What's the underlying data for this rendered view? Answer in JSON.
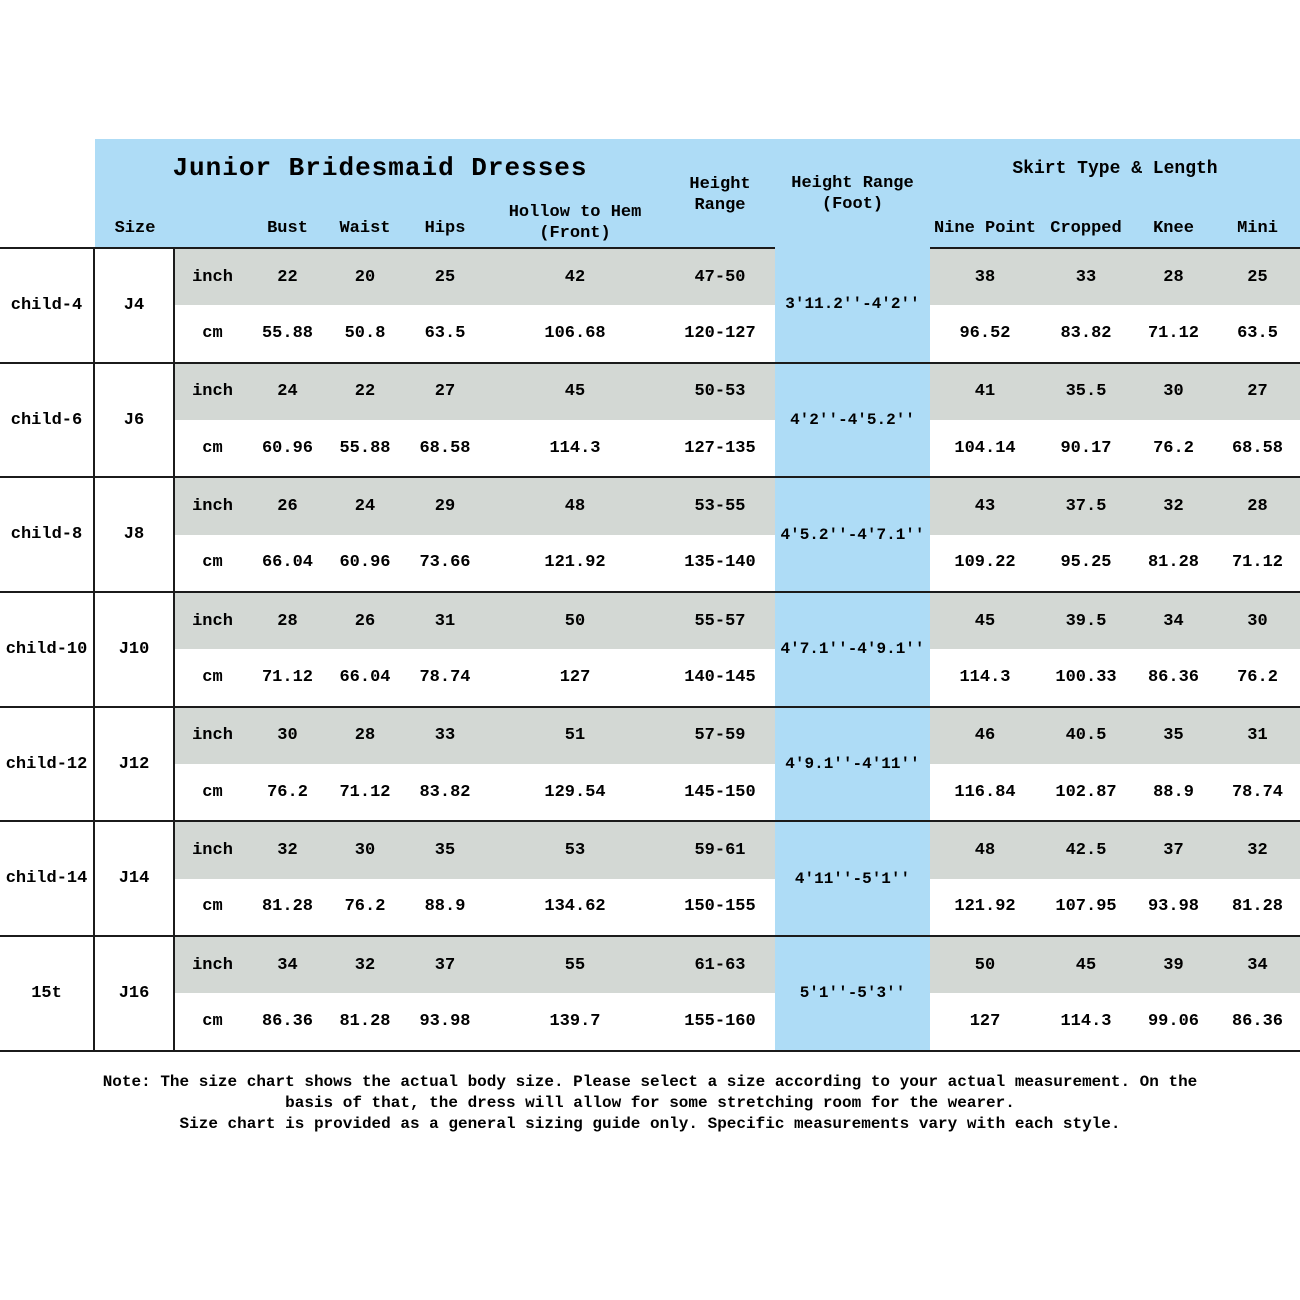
{
  "header": {
    "title": "Junior Bridesmaid Dresses",
    "size": "Size",
    "bust": "Bust",
    "waist": "Waist",
    "hips": "Hips",
    "hollow_l1": "Hollow to Hem",
    "hollow_l2": "(Front)",
    "height_range_l1": "Height",
    "height_range_l2": "Range",
    "height_foot_l1": "Height Range",
    "height_foot_l2": "(Foot)",
    "skirt_group": "Skirt Type & Length",
    "nine_point": "Nine Point",
    "cropped": "Cropped",
    "knee": "Knee",
    "mini": "Mini"
  },
  "units": {
    "inch": "inch",
    "cm": "cm"
  },
  "colors": {
    "header_blue": "#aedcf6",
    "inch_row_grey": "#d3d8d4",
    "line_black": "#1b1b1b"
  },
  "rows": [
    {
      "label": "child-4",
      "size": "J4",
      "foot": "3'11.2''-4'2''",
      "inch": {
        "bust": "22",
        "waist": "20",
        "hips": "25",
        "hollow": "42",
        "height": "47-50",
        "nine_point": "38",
        "cropped": "33",
        "knee": "28",
        "mini": "25"
      },
      "cm": {
        "bust": "55.88",
        "waist": "50.8",
        "hips": "63.5",
        "hollow": "106.68",
        "height": "120-127",
        "nine_point": "96.52",
        "cropped": "83.82",
        "knee": "71.12",
        "mini": "63.5"
      }
    },
    {
      "label": "child-6",
      "size": "J6",
      "foot": "4'2''-4'5.2''",
      "inch": {
        "bust": "24",
        "waist": "22",
        "hips": "27",
        "hollow": "45",
        "height": "50-53",
        "nine_point": "41",
        "cropped": "35.5",
        "knee": "30",
        "mini": "27"
      },
      "cm": {
        "bust": "60.96",
        "waist": "55.88",
        "hips": "68.58",
        "hollow": "114.3",
        "height": "127-135",
        "nine_point": "104.14",
        "cropped": "90.17",
        "knee": "76.2",
        "mini": "68.58"
      }
    },
    {
      "label": "child-8",
      "size": "J8",
      "foot": "4'5.2''-4'7.1''",
      "inch": {
        "bust": "26",
        "waist": "24",
        "hips": "29",
        "hollow": "48",
        "height": "53-55",
        "nine_point": "43",
        "cropped": "37.5",
        "knee": "32",
        "mini": "28"
      },
      "cm": {
        "bust": "66.04",
        "waist": "60.96",
        "hips": "73.66",
        "hollow": "121.92",
        "height": "135-140",
        "nine_point": "109.22",
        "cropped": "95.25",
        "knee": "81.28",
        "mini": "71.12"
      }
    },
    {
      "label": "child-10",
      "size": "J10",
      "foot": "4'7.1''-4'9.1''",
      "inch": {
        "bust": "28",
        "waist": "26",
        "hips": "31",
        "hollow": "50",
        "height": "55-57",
        "nine_point": "45",
        "cropped": "39.5",
        "knee": "34",
        "mini": "30"
      },
      "cm": {
        "bust": "71.12",
        "waist": "66.04",
        "hips": "78.74",
        "hollow": "127",
        "height": "140-145",
        "nine_point": "114.3",
        "cropped": "100.33",
        "knee": "86.36",
        "mini": "76.2"
      }
    },
    {
      "label": "child-12",
      "size": "J12",
      "foot": "4'9.1''-4'11''",
      "inch": {
        "bust": "30",
        "waist": "28",
        "hips": "33",
        "hollow": "51",
        "height": "57-59",
        "nine_point": "46",
        "cropped": "40.5",
        "knee": "35",
        "mini": "31"
      },
      "cm": {
        "bust": "76.2",
        "waist": "71.12",
        "hips": "83.82",
        "hollow": "129.54",
        "height": "145-150",
        "nine_point": "116.84",
        "cropped": "102.87",
        "knee": "88.9",
        "mini": "78.74"
      }
    },
    {
      "label": "child-14",
      "size": "J14",
      "foot": "4'11''-5'1''",
      "inch": {
        "bust": "32",
        "waist": "30",
        "hips": "35",
        "hollow": "53",
        "height": "59-61",
        "nine_point": "48",
        "cropped": "42.5",
        "knee": "37",
        "mini": "32"
      },
      "cm": {
        "bust": "81.28",
        "waist": "76.2",
        "hips": "88.9",
        "hollow": "134.62",
        "height": "150-155",
        "nine_point": "121.92",
        "cropped": "107.95",
        "knee": "93.98",
        "mini": "81.28"
      }
    },
    {
      "label": "15t",
      "size": "J16",
      "foot": "5'1''-5'3''",
      "inch": {
        "bust": "34",
        "waist": "32",
        "hips": "37",
        "hollow": "55",
        "height": "61-63",
        "nine_point": "50",
        "cropped": "45",
        "knee": "39",
        "mini": "34"
      },
      "cm": {
        "bust": "86.36",
        "waist": "81.28",
        "hips": "93.98",
        "hollow": "139.7",
        "height": "155-160",
        "nine_point": "127",
        "cropped": "114.3",
        "knee": "99.06",
        "mini": "86.36"
      }
    }
  ],
  "note": {
    "line1": "Note: The size chart shows the actual body size. Please select a size according to your actual measurement. On the",
    "line2": "basis of that, the dress will allow for some stretching room for the wearer.",
    "line3": "Size chart is provided as a general sizing guide only. Specific measurements vary with each style."
  }
}
